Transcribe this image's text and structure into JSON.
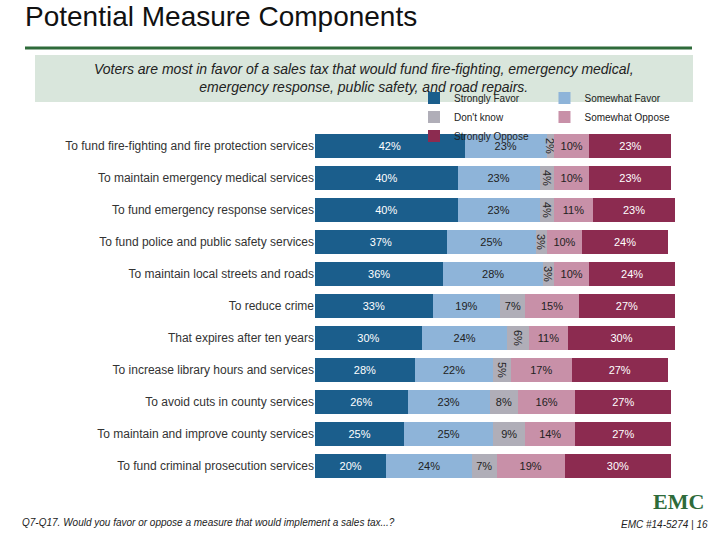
{
  "chart_data": {
    "type": "bar",
    "orientation": "horizontal",
    "stacked": true,
    "data_labels": true,
    "tick_labels": "y",
    "grid": false,
    "legend": "top",
    "title": "Potential Measure Components",
    "subtitle": [
      "Voters are most in favor of a sales tax that would fund fire-fighting, emergency medical,",
      "emergency response, public safety, and road repairs."
    ],
    "footnote": "Q7-Q17. Would you favor or oppose a measure that would implement a sales tax...?",
    "source": "EMC #14-5274 | 16",
    "logo": "EMC",
    "categories": [
      "To fund fire-fighting and fire protection services",
      "To maintain emergency medical services",
      "To fund emergency response services",
      "To fund police and public safety services",
      "To maintain local streets and roads",
      "To reduce crime",
      "That expires after ten years",
      "To increase library hours and services",
      "To avoid cuts in county services",
      "To maintain and improve county services",
      "To fund criminal prosecution services"
    ],
    "xlim": [
      0,
      101
    ],
    "series": [
      {
        "name": "Strongly Favor",
        "color": "#1b5e8c",
        "values": [
          42,
          40,
          40,
          37,
          36,
          33,
          30,
          28,
          26,
          25,
          20
        ],
        "value_labels": [
          "42%",
          "40%",
          "40%",
          "37%",
          "36%",
          "33%",
          "30%",
          "28%",
          "26%",
          "25%",
          "20%"
        ]
      },
      {
        "name": "Somewhat Favor",
        "color": "#8eb4d9",
        "values": [
          23,
          23,
          23,
          25,
          28,
          19,
          24,
          22,
          23,
          25,
          24
        ],
        "value_labels": [
          "23%",
          "23%",
          "23%",
          "25%",
          "28%",
          "19%",
          "24%",
          "22%",
          "23%",
          "25%",
          "24%"
        ]
      },
      {
        "name": "Don't know",
        "color": "#b0aeb8",
        "values": [
          2,
          4,
          4,
          3,
          3,
          7,
          6,
          5,
          8,
          9,
          7
        ],
        "value_labels": [
          "2%",
          "4%",
          "4%",
          "3%",
          "3%",
          "7%",
          "6%",
          "5%",
          "8%",
          "9%",
          "7%"
        ]
      },
      {
        "name": "Somewhat Oppose",
        "color": "#c890a8",
        "values": [
          10,
          10,
          11,
          10,
          10,
          15,
          11,
          17,
          16,
          14,
          19
        ],
        "value_labels": [
          "10%",
          "10%",
          "11%",
          "10%",
          "10%",
          "15%",
          "11%",
          "17%",
          "16%",
          "14%",
          "19%"
        ]
      },
      {
        "name": "Strongly Oppose",
        "color": "#8c2b50",
        "values": [
          23,
          23,
          23,
          24,
          24,
          27,
          30,
          27,
          27,
          27,
          30
        ],
        "value_labels": [
          "23%",
          "23%",
          "23%",
          "24%",
          "24%",
          "27%",
          "30%",
          "27%",
          "27%",
          "27%",
          "30%"
        ]
      }
    ]
  }
}
